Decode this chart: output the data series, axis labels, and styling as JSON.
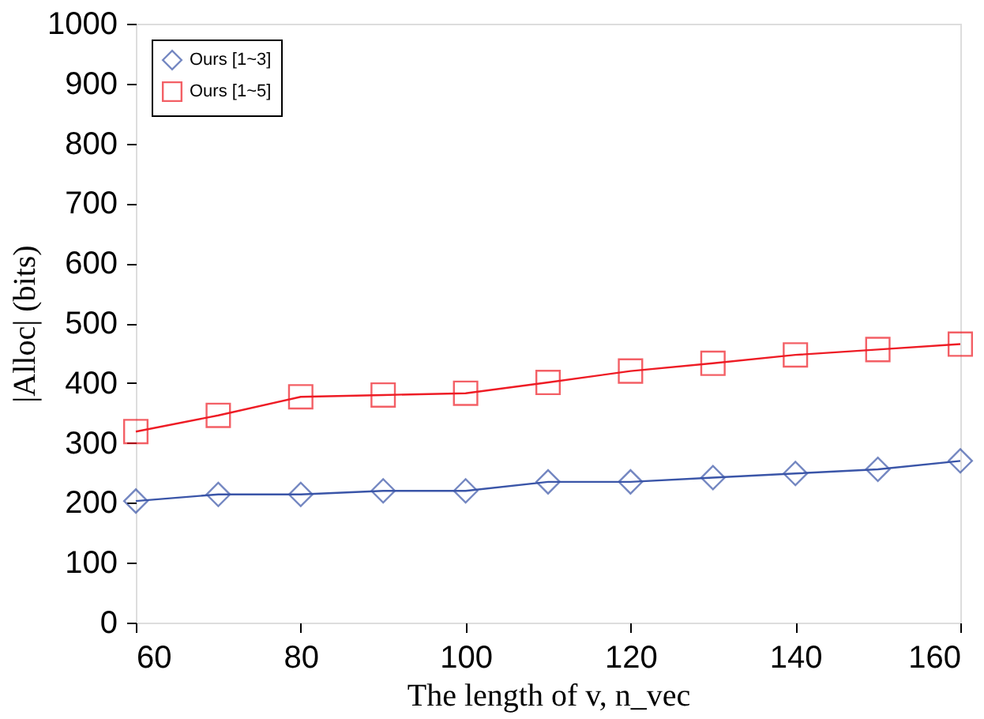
{
  "chart_data": {
    "type": "line",
    "xlabel": "The length of v, n_vec",
    "ylabel": "|Alloc| (bits)",
    "x": [
      60,
      70,
      80,
      90,
      100,
      110,
      120,
      130,
      140,
      150,
      160
    ],
    "series": [
      {
        "name": "Ours [1~3]",
        "color": "#3a55a8",
        "marker": "diamond",
        "values": [
          203,
          214,
          214,
          220,
          220,
          235,
          235,
          242,
          249,
          256,
          270
        ]
      },
      {
        "name": "Ours [1~5]",
        "color": "#ee1c25",
        "marker": "square",
        "values": [
          319,
          346,
          377,
          380,
          383,
          401,
          420,
          433,
          447,
          456,
          465
        ]
      }
    ],
    "xlim": [
      60,
      160
    ],
    "xticks": [
      60,
      80,
      100,
      120,
      140,
      160
    ],
    "ylim": [
      0,
      1000
    ],
    "yticks": [
      0,
      100,
      200,
      300,
      400,
      500,
      600,
      700,
      800,
      900,
      1000
    ],
    "grid": false,
    "legend": "top left",
    "line_style": "solid"
  }
}
